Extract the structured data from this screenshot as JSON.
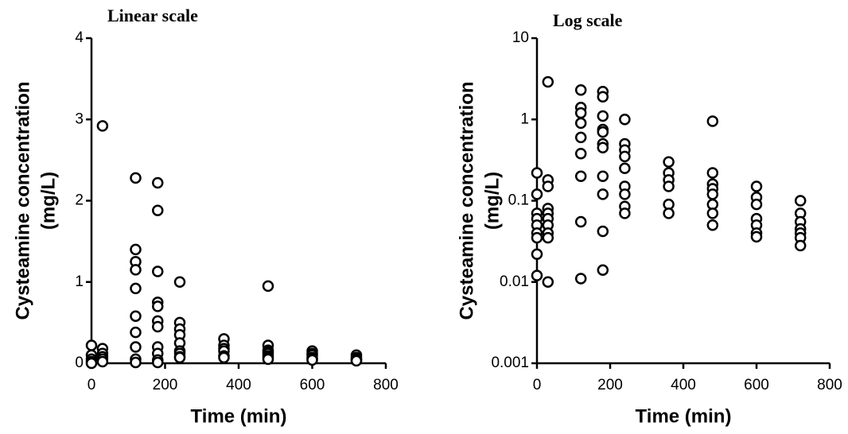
{
  "chart_data": [
    {
      "type": "scatter",
      "title": "Linear scale",
      "xlabel": "Time (min)",
      "ylabel": [
        "Cysteamine concentration",
        "(mg/L)"
      ],
      "yscale": "linear",
      "marker_color": "#000000",
      "xlim": [
        0,
        800
      ],
      "xticks": [
        0,
        200,
        400,
        600,
        800
      ],
      "ylim": [
        0,
        4
      ],
      "yticks": [
        0,
        1,
        2,
        3,
        4
      ],
      "x": [
        0,
        0,
        0,
        0,
        0,
        30,
        30,
        30,
        30,
        30,
        30,
        120,
        120,
        120,
        120,
        120,
        120,
        120,
        120,
        120,
        120,
        180,
        180,
        180,
        180,
        180,
        180,
        180,
        180,
        180,
        180,
        180,
        240,
        240,
        240,
        240,
        240,
        240,
        240,
        240,
        240,
        360,
        360,
        360,
        360,
        360,
        360,
        480,
        480,
        480,
        480,
        480,
        480,
        480,
        480,
        600,
        600,
        600,
        600,
        600,
        600,
        720,
        720,
        720,
        720,
        720
      ],
      "values": [
        0.22,
        0.1,
        0.05,
        0.02,
        0.0,
        2.92,
        0.18,
        0.12,
        0.08,
        0.05,
        0.02,
        2.28,
        1.4,
        1.25,
        1.15,
        0.92,
        0.58,
        0.38,
        0.2,
        0.05,
        0.01,
        2.22,
        1.88,
        1.13,
        0.75,
        0.7,
        0.52,
        0.45,
        0.2,
        0.12,
        0.04,
        0.01,
        1.0,
        0.5,
        0.42,
        0.35,
        0.25,
        0.15,
        0.12,
        0.08,
        0.07,
        0.3,
        0.22,
        0.18,
        0.15,
        0.09,
        0.07,
        0.95,
        0.22,
        0.16,
        0.14,
        0.12,
        0.09,
        0.07,
        0.05,
        0.15,
        0.12,
        0.1,
        0.07,
        0.05,
        0.04,
        0.1,
        0.07,
        0.05,
        0.04,
        0.03
      ]
    },
    {
      "type": "scatter",
      "title": "Log scale",
      "xlabel": "Time (min)",
      "ylabel": [
        "Cysteamine concentration",
        "(mg/L)"
      ],
      "yscale": "log",
      "marker_color": "#000000",
      "xlim": [
        0,
        800
      ],
      "xticks": [
        0,
        200,
        400,
        600,
        800
      ],
      "ylim": [
        0.001,
        10
      ],
      "yticks": [
        0.001,
        0.01,
        0.1,
        1,
        10
      ],
      "x": [
        0,
        0,
        0,
        0,
        0,
        0,
        0,
        0,
        0,
        30,
        30,
        30,
        30,
        30,
        30,
        30,
        30,
        30,
        30,
        120,
        120,
        120,
        120,
        120,
        120,
        120,
        120,
        120,
        180,
        180,
        180,
        180,
        180,
        180,
        180,
        180,
        180,
        180,
        180,
        240,
        240,
        240,
        240,
        240,
        240,
        240,
        240,
        240,
        360,
        360,
        360,
        360,
        360,
        360,
        480,
        480,
        480,
        480,
        480,
        480,
        480,
        480,
        600,
        600,
        600,
        600,
        600,
        600,
        600,
        720,
        720,
        720,
        720,
        720,
        720,
        720
      ],
      "values": [
        0.22,
        0.12,
        0.07,
        0.06,
        0.05,
        0.04,
        0.035,
        0.022,
        0.012,
        2.9,
        0.18,
        0.15,
        0.08,
        0.07,
        0.06,
        0.05,
        0.04,
        0.035,
        0.01,
        2.3,
        1.4,
        1.2,
        0.9,
        0.6,
        0.38,
        0.2,
        0.055,
        0.011,
        2.2,
        1.9,
        1.1,
        0.75,
        0.7,
        0.5,
        0.45,
        0.2,
        0.12,
        0.042,
        0.014,
        1.0,
        0.5,
        0.42,
        0.35,
        0.25,
        0.15,
        0.12,
        0.085,
        0.07,
        0.3,
        0.22,
        0.18,
        0.15,
        0.09,
        0.07,
        0.95,
        0.22,
        0.16,
        0.14,
        0.12,
        0.09,
        0.07,
        0.05,
        0.15,
        0.11,
        0.09,
        0.06,
        0.05,
        0.04,
        0.036,
        0.1,
        0.07,
        0.055,
        0.045,
        0.04,
        0.035,
        0.028
      ]
    }
  ]
}
